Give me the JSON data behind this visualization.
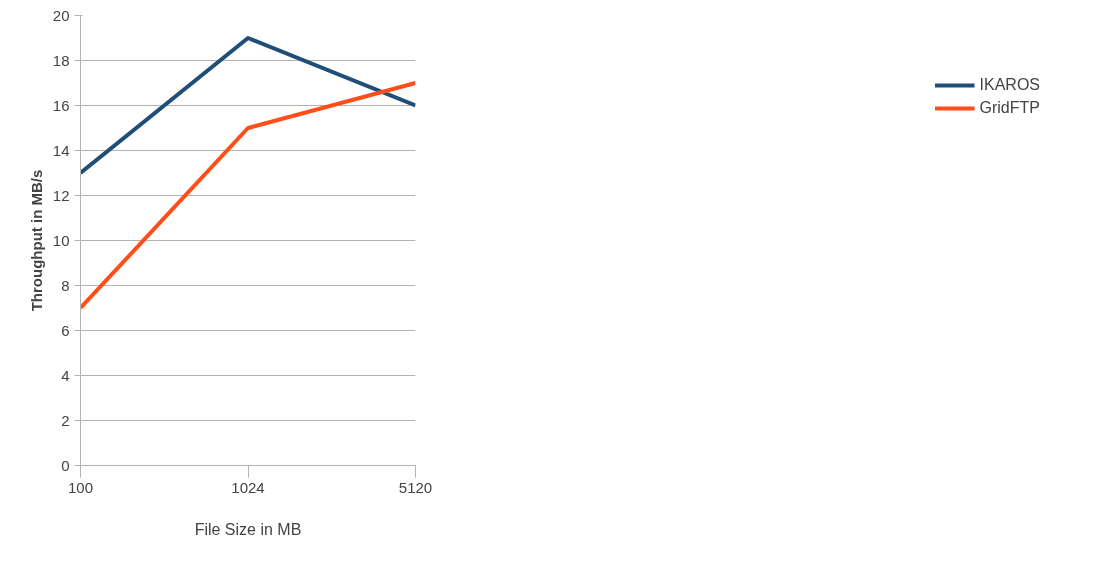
{
  "chart_data": {
    "type": "line",
    "xlabel": "File Size in MB",
    "ylabel": "Throughput in MB/s",
    "categories": [
      "100",
      "1024",
      "5120"
    ],
    "series": [
      {
        "name": "IKAROS",
        "color": "#1f4e79",
        "values": [
          13,
          19,
          16
        ]
      },
      {
        "name": "GridFTP",
        "color": "#ff4e1a",
        "values": [
          7,
          15,
          17
        ]
      }
    ],
    "ylim": [
      0,
      20
    ],
    "yticks": [
      0,
      2,
      4,
      6,
      8,
      10,
      12,
      14,
      16,
      18,
      20
    ],
    "grid": "y",
    "legend": "right",
    "marker": "none",
    "line_style": "solid"
  }
}
